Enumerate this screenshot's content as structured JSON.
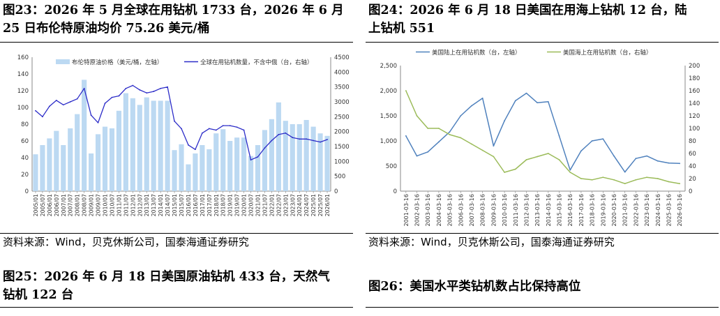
{
  "left": {
    "title": "图23：2026 年 5 月全球在用钻机 1733 台，2026 年 6 月 25 日布伦特原油均价 75.26 美元/桶",
    "title_lines": [
      "图23：2026 年 5 月全球在用钻机 1733 台，2026 年 6 月",
      "25 日布伦特原油均价 75.26 美元/桶"
    ],
    "source": "资料来源：Wind，贝克休斯公司，国泰海通证券研究",
    "next_title_lines": [
      "图25：2026 年 6 月 18 日美国原油钻机 433 台，天然气",
      "钻机 122 台"
    ]
  },
  "right": {
    "title_lines": [
      "图24：2026 年 6 月 18 日美国在用海上钻机 12 台，陆",
      "上钻机 551"
    ],
    "source": "资料来源：Wind，贝克休斯公司，国泰海通证券研究",
    "next_title_lines": [
      "图26：美国水平类钻机数占比保持高位"
    ]
  },
  "chart_data": [
    {
      "type": "bar",
      "legend_position": "top",
      "series": [
        {
          "name": "布伦特原油价格（美元/桶，左轴）",
          "type": "bar",
          "axis": "left",
          "color": "#bcd9f2",
          "x": [
            "2005/01",
            "2005/07",
            "2006/01",
            "2006/07",
            "2007/01",
            "2007/07",
            "2008/01",
            "2008/07",
            "2009/01",
            "2009/07",
            "2010/01",
            "2010/07",
            "2011/01",
            "2011/07",
            "2012/01",
            "2012/07",
            "2013/01",
            "2013/07",
            "2014/01",
            "2014/07",
            "2015/01",
            "2015/07",
            "2016/01",
            "2016/07",
            "2017/01",
            "2017/07",
            "2018/01",
            "2018/07",
            "2019/01",
            "2019/07",
            "2020/01",
            "2020/07",
            "2021/01",
            "2021/07",
            "2022/01",
            "2022/07",
            "2023/01",
            "2023/07",
            "2024/01",
            "2024/07",
            "2025/01",
            "2025/07",
            "2026/01"
          ],
          "values": [
            44,
            55,
            63,
            72,
            55,
            75,
            92,
            133,
            45,
            68,
            77,
            75,
            96,
            117,
            111,
            103,
            112,
            108,
            108,
            108,
            49,
            56,
            32,
            45,
            55,
            50,
            69,
            74,
            60,
            64,
            64,
            42,
            55,
            73,
            86,
            106,
            84,
            80,
            80,
            85,
            77,
            69,
            66
          ]
        },
        {
          "name": "全球在用钻机数量，不含中俄（台，右轴）",
          "type": "line",
          "axis": "right",
          "color": "#2c2cc8",
          "x": [
            "2005/01",
            "2005/07",
            "2006/01",
            "2006/07",
            "2007/01",
            "2007/07",
            "2008/01",
            "2008/07",
            "2009/01",
            "2009/07",
            "2010/01",
            "2010/07",
            "2011/01",
            "2011/07",
            "2012/01",
            "2012/07",
            "2013/01",
            "2013/07",
            "2014/01",
            "2014/07",
            "2015/01",
            "2015/07",
            "2016/01",
            "2016/07",
            "2017/01",
            "2017/07",
            "2018/01",
            "2018/07",
            "2019/01",
            "2019/07",
            "2020/01",
            "2020/07",
            "2021/01",
            "2021/07",
            "2022/01",
            "2022/07",
            "2023/01",
            "2023/07",
            "2024/01",
            "2024/07",
            "2025/01",
            "2025/07",
            "2026/01"
          ],
          "values": [
            2700,
            2500,
            2850,
            3050,
            2900,
            3000,
            3100,
            3450,
            2550,
            2300,
            2950,
            3150,
            3200,
            3450,
            3550,
            3400,
            3300,
            3350,
            3450,
            3500,
            2350,
            2100,
            1550,
            1400,
            1950,
            2100,
            2050,
            2200,
            2200,
            2150,
            2050,
            1050,
            1150,
            1450,
            1700,
            1900,
            1950,
            1800,
            1750,
            1750,
            1700,
            1650,
            1733
          ]
        }
      ],
      "y_left": {
        "min": 0,
        "max": 160,
        "ticks": [
          "0",
          "20",
          "40",
          "60",
          "80",
          "100",
          "120",
          "140",
          "160"
        ]
      },
      "y_right": {
        "min": 0,
        "max": 4500,
        "ticks": [
          "0",
          "500",
          "1000",
          "1500",
          "2000",
          "2500",
          "3000",
          "3500",
          "4000",
          "4500"
        ]
      },
      "x_ticks": [
        "2005/01",
        "2005/07",
        "2006/01",
        "2006/07",
        "2007/01",
        "2007/07",
        "2008/01",
        "2008/07",
        "2009/01",
        "2009/07",
        "2010/01",
        "2010/07",
        "2011/01",
        "2011/07",
        "2012/01",
        "2012/07",
        "2013/01",
        "2013/07",
        "2014/01",
        "2014/07",
        "2015/01",
        "2015/07",
        "2016/01",
        "2016/07",
        "2017/01",
        "2017/07",
        "2018/01",
        "2018/07",
        "2019/01",
        "2019/07",
        "2020/01",
        "2020/07",
        "2021/01",
        "2021/07",
        "2022/01",
        "2022/07",
        "2023/01",
        "2023/07",
        "2024/01",
        "2024/07",
        "2025/01",
        "2025/07",
        "2026/01"
      ]
    },
    {
      "type": "line",
      "legend_position": "top",
      "grid": false,
      "series": [
        {
          "name": "美国陆上在用钻机数（台，左轴）",
          "axis": "left",
          "color": "#4f81bd",
          "x": [
            "2001-03-16",
            "2002-03-16",
            "2003-03-16",
            "2004-03-16",
            "2005-03-16",
            "2006-03-16",
            "2007-03-16",
            "2008-03-16",
            "2009-03-16",
            "2010-03-16",
            "2011-03-16",
            "2012-03-16",
            "2013-03-16",
            "2014-03-16",
            "2015-03-16",
            "2016-03-16",
            "2017-03-16",
            "2018-03-16",
            "2019-03-16",
            "2020-03-16",
            "2021-03-16",
            "2022-03-16",
            "2023-03-16",
            "2024-03-16",
            "2025-03-16",
            "2026-03-16"
          ],
          "values": [
            1100,
            700,
            780,
            980,
            1180,
            1500,
            1700,
            1850,
            900,
            1400,
            1800,
            1950,
            1760,
            1780,
            1100,
            420,
            800,
            1000,
            1040,
            700,
            380,
            650,
            700,
            600,
            560,
            551
          ]
        },
        {
          "name": "美国海上在用钻机数（台，右轴）",
          "axis": "right",
          "color": "#9bbb59",
          "x": [
            "2001-03-16",
            "2002-03-16",
            "2003-03-16",
            "2004-03-16",
            "2005-03-16",
            "2006-03-16",
            "2007-03-16",
            "2008-03-16",
            "2009-03-16",
            "2010-03-16",
            "2011-03-16",
            "2012-03-16",
            "2013-03-16",
            "2014-03-16",
            "2015-03-16",
            "2016-03-16",
            "2017-03-16",
            "2018-03-16",
            "2019-03-16",
            "2020-03-16",
            "2021-03-16",
            "2022-03-16",
            "2023-03-16",
            "2024-03-16",
            "2025-03-16",
            "2026-03-16"
          ],
          "values": [
            160,
            120,
            100,
            100,
            90,
            85,
            75,
            65,
            55,
            30,
            35,
            50,
            55,
            60,
            50,
            30,
            20,
            18,
            22,
            18,
            12,
            18,
            22,
            20,
            15,
            12
          ]
        }
      ],
      "y_left": {
        "min": 0,
        "max": 2500,
        "ticks": [
          "0",
          "500",
          "1,000",
          "1,500",
          "2,000",
          "2,500"
        ]
      },
      "y_right": {
        "min": 0,
        "max": 200,
        "ticks": [
          "0",
          "20",
          "40",
          "60",
          "80",
          "100",
          "120",
          "140",
          "160",
          "180",
          "200"
        ]
      },
      "x_ticks": [
        "2001-03-16",
        "2002-03-16",
        "2003-03-16",
        "2004-03-16",
        "2005-03-16",
        "2006-03-16",
        "2007-03-16",
        "2008-03-16",
        "2009-03-16",
        "2010-03-16",
        "2011-03-16",
        "2012-03-16",
        "2013-03-16",
        "2014-03-16",
        "2015-03-16",
        "2016-03-16",
        "2017-03-16",
        "2018-03-16",
        "2019-03-16",
        "2020-03-16",
        "2021-03-16",
        "2022-03-16",
        "2023-03-16",
        "2024-03-16",
        "2025-03-16",
        "2026-03-16"
      ]
    }
  ]
}
